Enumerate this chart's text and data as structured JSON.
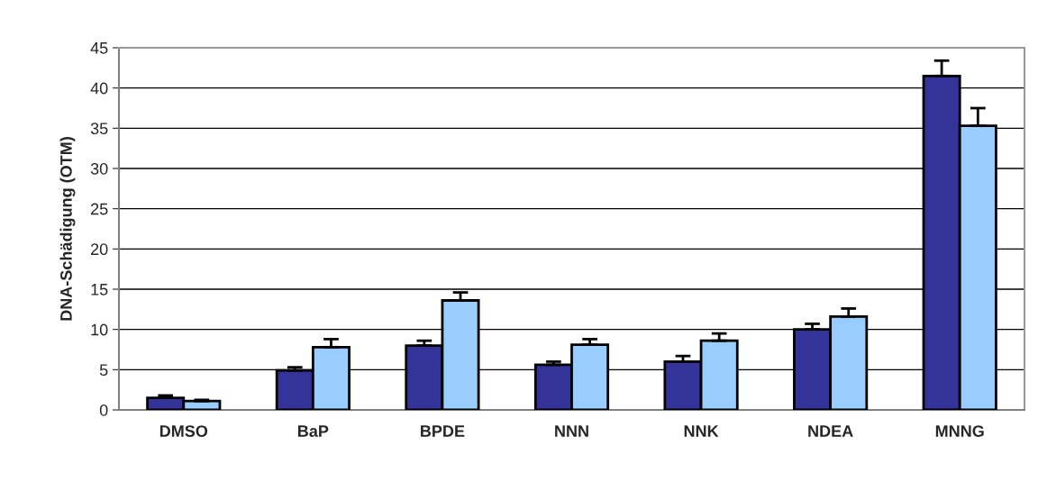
{
  "chart_data": {
    "type": "bar",
    "ylabel": "DNA-Schädigung (OTM)",
    "categories": [
      "DMSO",
      "BaP",
      "BPDE",
      "NNN",
      "NNK",
      "NDEA",
      "MNNG"
    ],
    "series": [
      {
        "color": "#333399",
        "values": [
          1.5,
          4.9,
          8.0,
          5.6,
          6.0,
          10.0,
          41.5
        ],
        "errors": [
          [
            1.5,
            1.8
          ],
          [
            4.9,
            5.3
          ],
          [
            8.0,
            8.6
          ],
          [
            5.6,
            6.0
          ],
          [
            6.0,
            6.7
          ],
          [
            10.0,
            10.7
          ],
          [
            41.5,
            43.4
          ]
        ]
      },
      {
        "color": "#99ccff",
        "values": [
          1.1,
          7.8,
          13.6,
          8.1,
          8.6,
          11.6,
          35.3
        ],
        "errors": [
          [
            1.1,
            1.25
          ],
          [
            7.8,
            8.8
          ],
          [
            13.6,
            14.6
          ],
          [
            8.1,
            8.8
          ],
          [
            8.6,
            9.5
          ],
          [
            11.6,
            12.6
          ],
          [
            35.3,
            37.5
          ]
        ]
      }
    ],
    "ylim": [
      0,
      45
    ],
    "yticks": [
      0,
      5,
      10,
      15,
      20,
      25,
      30,
      35,
      40,
      45
    ],
    "grid": "y"
  }
}
